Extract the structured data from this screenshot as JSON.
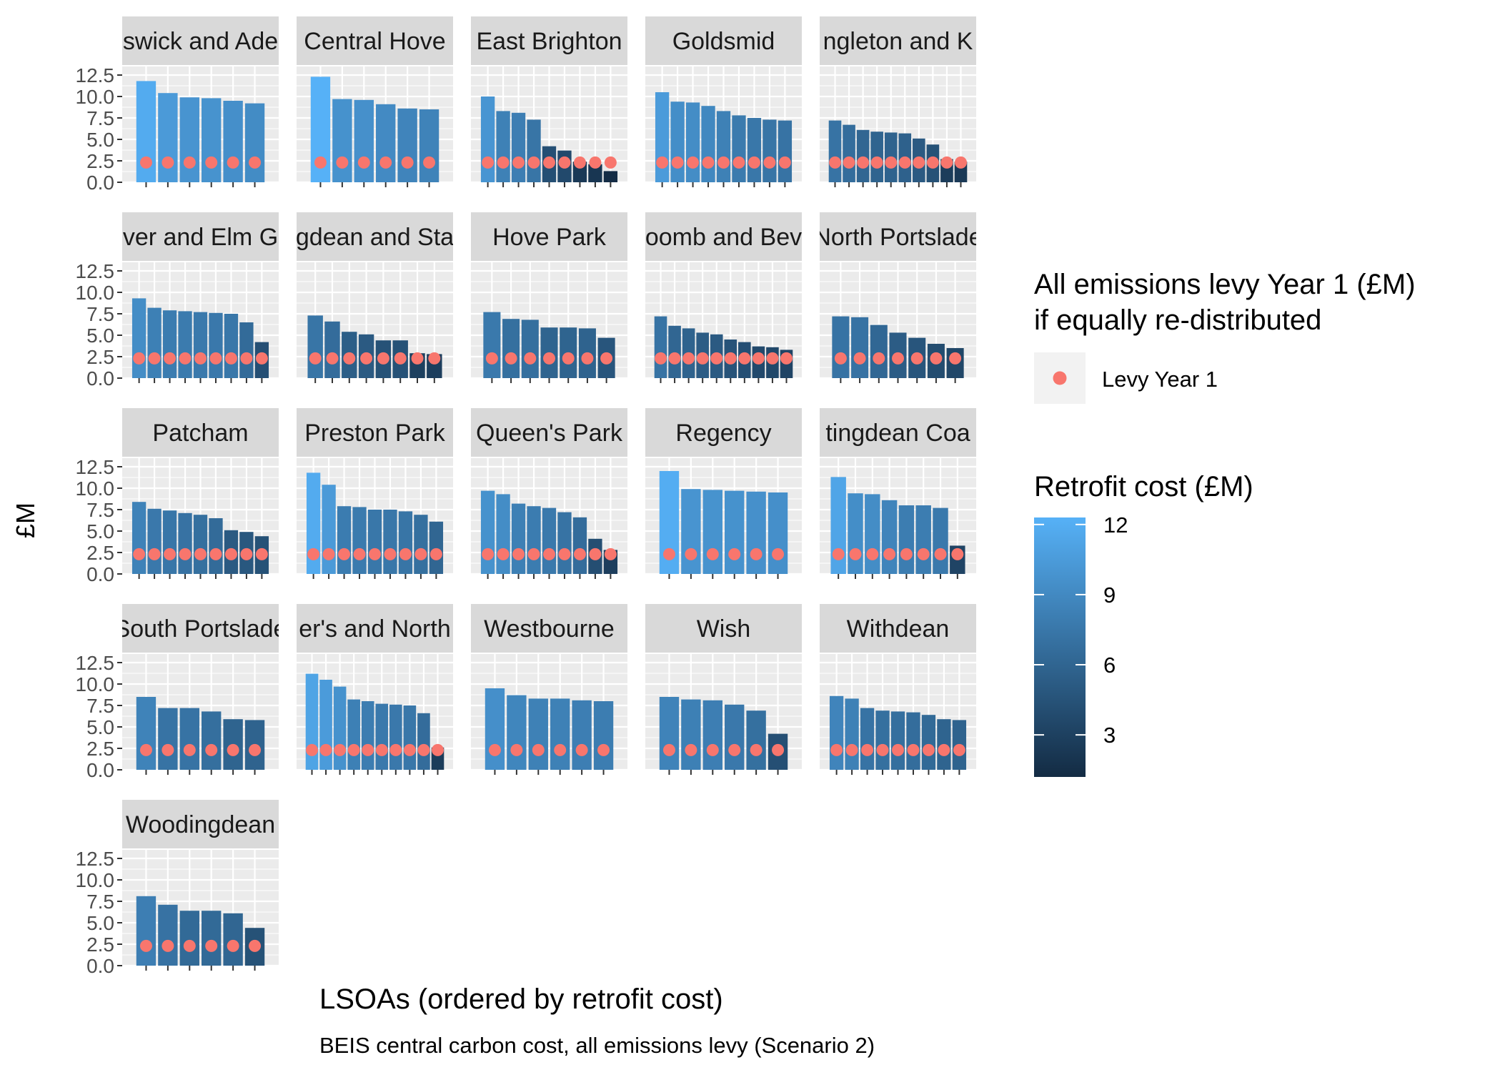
{
  "chart_data": {
    "type": "bar",
    "layout": "faceted small multiples, 5 columns x 5 rows",
    "ylabel": "£M",
    "xlabel": "LSOAs (ordered by retrofit cost)",
    "caption": "BEIS central carbon cost, all emissions levy (Scenario 2)",
    "ylim": [
      0,
      13.5
    ],
    "yticks": [
      "0.0",
      "2.5",
      "5.0",
      "7.5",
      "10.0",
      "12.5"
    ],
    "ytick_values": [
      0,
      2.5,
      5,
      7.5,
      10,
      12.5
    ],
    "grid": true,
    "panel_background": "#EBEBEB",
    "strip_background": "#D9D9D9",
    "levy_color": "#F8766D",
    "fill_scale": {
      "low": "#132B43",
      "high": "#56B1F7",
      "min": 1.2,
      "max": 12.3
    },
    "legend": {
      "position": "right",
      "levy_title": "All emissions levy Year 1 (£M)\nif equally re-distributed",
      "levy_title_lines": [
        "All emissions levy Year 1 (£M)",
        "if equally re-distributed"
      ],
      "levy_label": "Levy Year 1",
      "fill_title": "Retrofit cost (£M)",
      "fill_ticks": [
        "12",
        "9",
        "6",
        "3"
      ],
      "fill_tick_values": [
        12,
        9,
        6,
        3
      ]
    },
    "levy_value": 2.3,
    "facets": [
      {
        "name": "Brunswick and Adelaide",
        "label": "swick and Ade",
        "values": [
          11.8,
          10.4,
          9.9,
          9.8,
          9.5,
          9.2
        ]
      },
      {
        "name": "Central Hove",
        "label": "Central Hove",
        "values": [
          12.3,
          9.7,
          9.6,
          9.1,
          8.6,
          8.5
        ]
      },
      {
        "name": "East Brighton",
        "label": "East Brighton",
        "values": [
          10.0,
          8.3,
          8.1,
          7.3,
          4.2,
          3.7,
          2.4,
          2.1,
          1.3
        ]
      },
      {
        "name": "Goldsmid",
        "label": "Goldsmid",
        "values": [
          10.5,
          9.4,
          9.3,
          8.9,
          8.3,
          7.8,
          7.5,
          7.3,
          7.2
        ]
      },
      {
        "name": "Hangleton and Knoll",
        "label": "ngleton and K",
        "values": [
          7.2,
          6.7,
          6.1,
          5.9,
          5.8,
          5.7,
          5.1,
          4.4,
          2.7,
          2.4
        ]
      },
      {
        "name": "Hanover and Elm Grove",
        "label": "ver and Elm G",
        "values": [
          9.3,
          8.2,
          7.9,
          7.8,
          7.7,
          7.6,
          7.5,
          6.5,
          4.2
        ]
      },
      {
        "name": "Hollingdean and Stanmer",
        "label": "gdean and Sta",
        "values": [
          7.3,
          6.6,
          5.4,
          5.1,
          4.4,
          4.4,
          2.9,
          2.8
        ]
      },
      {
        "name": "Hove Park",
        "label": "Hove Park",
        "values": [
          7.7,
          6.9,
          6.8,
          5.9,
          5.9,
          5.8,
          4.7
        ]
      },
      {
        "name": "Moulsecoomb and Bevendean",
        "label": "oomb and Bev",
        "values": [
          7.2,
          6.1,
          5.8,
          5.3,
          5.1,
          4.5,
          4.2,
          3.7,
          3.6,
          3.3
        ]
      },
      {
        "name": "North Portslade",
        "label": "North Portslade",
        "values": [
          7.2,
          7.1,
          6.2,
          5.3,
          4.7,
          4.0,
          3.5
        ]
      },
      {
        "name": "Patcham",
        "label": "Patcham",
        "values": [
          8.4,
          7.6,
          7.4,
          7.1,
          6.9,
          6.5,
          5.1,
          4.9,
          4.4
        ]
      },
      {
        "name": "Preston Park",
        "label": "Preston Park",
        "values": [
          11.8,
          10.4,
          7.9,
          7.8,
          7.5,
          7.5,
          7.3,
          6.9,
          6.1
        ]
      },
      {
        "name": "Queen's Park",
        "label": "Queen's Park",
        "values": [
          9.7,
          9.3,
          8.2,
          7.9,
          7.7,
          7.2,
          6.6,
          4.1,
          2.8
        ]
      },
      {
        "name": "Regency",
        "label": "Regency",
        "values": [
          12.0,
          9.9,
          9.8,
          9.7,
          9.6,
          9.5
        ]
      },
      {
        "name": "Rottingdean Coastal",
        "label": "tingdean Coa",
        "values": [
          11.3,
          9.4,
          9.3,
          8.6,
          8.0,
          8.0,
          7.7,
          3.3
        ]
      },
      {
        "name": "South Portslade",
        "label": "South Portslade",
        "values": [
          8.5,
          7.2,
          7.2,
          6.8,
          5.9,
          5.8
        ]
      },
      {
        "name": "St. Peter's and North Laine",
        "label": "er's and North",
        "values": [
          11.2,
          10.5,
          9.7,
          8.2,
          8.0,
          7.7,
          7.6,
          7.5,
          6.6,
          2.6
        ]
      },
      {
        "name": "Westbourne",
        "label": "Westbourne",
        "values": [
          9.5,
          8.7,
          8.3,
          8.3,
          8.1,
          8.0
        ]
      },
      {
        "name": "Wish",
        "label": "Wish",
        "values": [
          8.5,
          8.2,
          8.1,
          7.6,
          6.9,
          4.2
        ]
      },
      {
        "name": "Withdean",
        "label": "Withdean",
        "values": [
          8.6,
          8.3,
          7.2,
          6.9,
          6.8,
          6.7,
          6.4,
          5.9,
          5.8
        ]
      },
      {
        "name": "Woodingdean",
        "label": "Woodingdean",
        "values": [
          8.1,
          7.1,
          6.4,
          6.4,
          6.1,
          4.4
        ]
      }
    ]
  }
}
